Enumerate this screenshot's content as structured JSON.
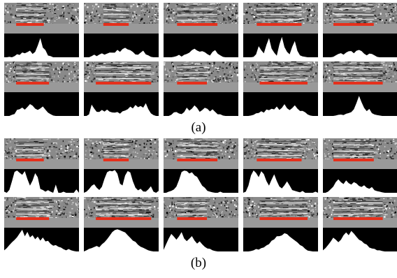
{
  "figure": {
    "panels": [
      {
        "label": "(a)",
        "rows": [
          {
            "cells": [
              {
                "segment": [
                  0.16,
                  0.53
                ],
                "activation": [
                  0,
                  0,
                  0.02,
                  0,
                  0.05,
                  0.12,
                  0.1,
                  0.2,
                  0.18,
                  0.25,
                  0.3,
                  0.18,
                  0.22,
                  0.5,
                  0.85,
                  0.45,
                  0.3,
                  0.1,
                  0.05,
                  0,
                  0,
                  0,
                  0,
                  0,
                  0,
                  0,
                  0,
                  0,
                  0,
                  0
                ]
              },
              {
                "segment": [
                  0.26,
                  0.6
                ],
                "activation": [
                  0,
                  0,
                  0,
                  0.05,
                  0.12,
                  0.08,
                  0.1,
                  0.15,
                  0.12,
                  0.16,
                  0.2,
                  0.18,
                  0.22,
                  0.3,
                  0.25,
                  0.35,
                  0.45,
                  0.38,
                  0.3,
                  0.22,
                  0.15,
                  0.12,
                  0.2,
                  0.3,
                  0.15,
                  0.06,
                  0.02,
                  0,
                  0,
                  0
                ]
              },
              {
                "segment": [
                  0.18,
                  0.72
                ],
                "activation": [
                  0,
                  0,
                  0,
                  0,
                  0.02,
                  0.05,
                  0.08,
                  0.06,
                  0.1,
                  0.12,
                  0.2,
                  0.32,
                  0.4,
                  0.3,
                  0.22,
                  0.25,
                  0.2,
                  0.15,
                  0.1,
                  0.22,
                  0.3,
                  0.18,
                  0.08,
                  0.02,
                  0,
                  0,
                  0,
                  0,
                  0,
                  0
                ]
              },
              {
                "segment": [
                  0.18,
                  0.78
                ],
                "activation": [
                  0,
                  0,
                  0,
                  0,
                  0.02,
                  0.1,
                  0.5,
                  0.3,
                  0.2,
                  0.55,
                  0.85,
                  0.4,
                  0.2,
                  0.1,
                  0.6,
                  0.9,
                  0.45,
                  0.25,
                  0.12,
                  0.45,
                  0.7,
                  0.3,
                  0.1,
                  0.04,
                  0.02,
                  0,
                  0,
                  0,
                  0,
                  0
                ]
              },
              {
                "segment": [
                  0.14,
                  0.68
                ],
                "activation": [
                  0,
                  0,
                  0,
                  0,
                  0.02,
                  0.06,
                  0.14,
                  0.2,
                  0.15,
                  0.22,
                  0.3,
                  0.25,
                  0.2,
                  0.28,
                  0.35,
                  0.25,
                  0.15,
                  0.1,
                  0.15,
                  0.12,
                  0.06,
                  0.02,
                  0,
                  0,
                  0,
                  0,
                  0,
                  0,
                  0,
                  0
                ]
              }
            ]
          },
          {
            "cells": [
              {
                "segment": [
                  0.16,
                  0.6
                ],
                "activation": [
                  0,
                  0,
                  0,
                  0.05,
                  0.12,
                  0.25,
                  0.3,
                  0.35,
                  0.28,
                  0.4,
                  0.55,
                  0.45,
                  0.3,
                  0.25,
                  0.35,
                  0.42,
                  0.3,
                  0.15,
                  0.06,
                  0.02,
                  0,
                  0,
                  0,
                  0,
                  0,
                  0,
                  0,
                  0,
                  0,
                  0
                ]
              },
              {
                "segment": [
                  0.16,
                  0.9
                ],
                "activation": [
                  0,
                  0,
                  0.1,
                  0.5,
                  0.3,
                  0.2,
                  0.15,
                  0.25,
                  0.2,
                  0.3,
                  0.22,
                  0.18,
                  0.12,
                  0.15,
                  0.1,
                  0.2,
                  0.25,
                  0.3,
                  0.42,
                  0.35,
                  0.5,
                  0.38,
                  0.45,
                  0.35,
                  0.55,
                  0.3,
                  0.12,
                  0.04,
                  0,
                  0
                ]
              },
              {
                "segment": [
                  0.18,
                  0.58
                ],
                "activation": [
                  0,
                  0,
                  0,
                  0.05,
                  0.15,
                  0.2,
                  0.12,
                  0.08,
                  0.2,
                  0.35,
                  0.25,
                  0.3,
                  0.48,
                  0.35,
                  0.2,
                  0.28,
                  0.4,
                  0.3,
                  0.22,
                  0.3,
                  0.18,
                  0.1,
                  0.06,
                  0.02,
                  0,
                  0,
                  0,
                  0,
                  0,
                  0
                ]
              },
              {
                "segment": [
                  0.22,
                  0.86
                ],
                "activation": [
                  0,
                  0,
                  0,
                  0.02,
                  0.05,
                  0.1,
                  0.15,
                  0.22,
                  0.18,
                  0.3,
                  0.25,
                  0.35,
                  0.28,
                  0.42,
                  0.3,
                  0.38,
                  0.5,
                  0.35,
                  0.25,
                  0.32,
                  0.45,
                  0.3,
                  0.2,
                  0.25,
                  0.15,
                  0.08,
                  0.02,
                  0,
                  0,
                  0
                ]
              },
              {
                "segment": [
                  0.14,
                  0.8
                ],
                "activation": [
                  0,
                  0,
                  0,
                  0,
                  0,
                  0.02,
                  0.05,
                  0.08,
                  0.06,
                  0.1,
                  0.15,
                  0.2,
                  0.3,
                  0.55,
                  0.9,
                  0.6,
                  0.35,
                  0.2,
                  0.3,
                  0.15,
                  0.08,
                  0.04,
                  0.02,
                  0,
                  0,
                  0,
                  0,
                  0,
                  0,
                  0
                ]
              }
            ]
          }
        ]
      },
      {
        "label": "(b)",
        "rows": [
          {
            "cells": [
              {
                "segment": [
                  0.16,
                  0.53
                ],
                "activation": [
                  0.05,
                  0,
                  0.1,
                  0.5,
                  0.95,
                  1,
                  0.9,
                  0.8,
                  0.95,
                  0.6,
                  0.3,
                  0.55,
                  0.9,
                  0.7,
                  0.2,
                  0.1,
                  0.05,
                  0.15,
                  0.05,
                  0,
                  0.4,
                  0,
                  0,
                  0.05,
                  0,
                  0,
                  0,
                  0,
                  0.15,
                  0
                ]
              },
              {
                "segment": [
                  0.26,
                  0.6
                ],
                "activation": [
                  0,
                  0.05,
                  0.15,
                  0.3,
                  0.4,
                  0.2,
                  0.1,
                  0.25,
                  0.6,
                  0.9,
                  1,
                  0.95,
                  1,
                  0.85,
                  0.4,
                  0.3,
                  0.8,
                  1,
                  0.9,
                  0.5,
                  0.2,
                  0.1,
                  0.15,
                  0.08,
                  0.05,
                  0.15,
                  0.3,
                  0.05,
                  0,
                  0.1
                ]
              },
              {
                "segment": [
                  0.18,
                  0.72
                ],
                "activation": [
                  0,
                  0,
                  0.05,
                  0.1,
                  0.15,
                  0.3,
                  0.6,
                  0.9,
                  1,
                  0.95,
                  0.85,
                  0.9,
                  0.8,
                  0.7,
                  0.5,
                  0.3,
                  0.2,
                  0.1,
                  0.05,
                  0.02,
                  0,
                  0,
                  0.05,
                  0,
                  0,
                  0,
                  0,
                  0,
                  0,
                  0
                ]
              },
              {
                "segment": [
                  0.18,
                  0.78
                ],
                "activation": [
                  0,
                  0.05,
                  0.3,
                  0.8,
                  1,
                  0.9,
                  0.7,
                  0.95,
                  0.85,
                  0.5,
                  0.3,
                  0.6,
                  0.8,
                  0.55,
                  0.3,
                  0.2,
                  0.35,
                  0.5,
                  0.3,
                  0.15,
                  0.1,
                  0.05,
                  0.02,
                  0.1,
                  0,
                  0,
                  0,
                  0,
                  0.05,
                  0
                ]
              },
              {
                "segment": [
                  0.14,
                  0.68
                ],
                "activation": [
                  0,
                  0,
                  0.05,
                  0.15,
                  0.3,
                  0.45,
                  0.6,
                  0.5,
                  0.4,
                  0.55,
                  0.45,
                  0.35,
                  0.5,
                  0.4,
                  0.3,
                  0.25,
                  0.35,
                  0.2,
                  0.15,
                  0.25,
                  0.12,
                  0.08,
                  0.05,
                  0.02,
                  0,
                  0,
                  0,
                  0,
                  0,
                  0
                ]
              }
            ]
          },
          {
            "cells": [
              {
                "segment": [
                  0.16,
                  0.6
                ],
                "activation": [
                  0.05,
                  0.15,
                  0.3,
                  0.4,
                  0.5,
                  0.65,
                  0.8,
                  0.95,
                  0.7,
                  0.85,
                  0.6,
                  0.75,
                  0.55,
                  0.65,
                  0.5,
                  0.6,
                  0.45,
                  0.5,
                  0.35,
                  0.25,
                  0.3,
                  0.2,
                  0.15,
                  0.1,
                  0.05,
                  0.1,
                  0.05,
                  0.02,
                  0,
                  0
                ]
              },
              {
                "segment": [
                  0.16,
                  0.9
                ],
                "activation": [
                  0,
                  0.05,
                  0.1,
                  0.15,
                  0.2,
                  0.25,
                  0.2,
                  0.3,
                  0.4,
                  0.55,
                  0.7,
                  0.85,
                  0.95,
                  1,
                  0.95,
                  0.9,
                  0.85,
                  0.75,
                  0.6,
                  0.5,
                  0.4,
                  0.3,
                  0.2,
                  0.15,
                  0.1,
                  0.05,
                  0.02,
                  0,
                  0,
                  0
                ]
              },
              {
                "segment": [
                  0.18,
                  0.58
                ],
                "activation": [
                  0.1,
                  0.3,
                  0.55,
                  0.8,
                  0.65,
                  0.5,
                  0.7,
                  0.85,
                  0.6,
                  0.45,
                  0.55,
                  0.7,
                  0.5,
                  0.35,
                  0.45,
                  0.3,
                  0.2,
                  0.15,
                  0.1,
                  0.05,
                  0.02,
                  0,
                  0,
                  0,
                  0,
                  0,
                  0,
                  0,
                  0,
                  0
                ]
              },
              {
                "segment": [
                  0.22,
                  0.86
                ],
                "activation": [
                  0,
                  0,
                  0,
                  0.02,
                  0.05,
                  0.08,
                  0.1,
                  0.15,
                  0.2,
                  0.25,
                  0.35,
                  0.45,
                  0.55,
                  0.65,
                  0.7,
                  0.75,
                  0.8,
                  0.75,
                  0.7,
                  0.6,
                  0.5,
                  0.4,
                  0.3,
                  0.2,
                  0.12,
                  0.06,
                  0.02,
                  0,
                  0,
                  0
                ]
              },
              {
                "segment": [
                  0.14,
                  0.8
                ],
                "activation": [
                  0.05,
                  0.15,
                  0.3,
                  0.45,
                  0.6,
                  0.5,
                  0.4,
                  0.55,
                  0.7,
                  0.85,
                  0.75,
                  0.9,
                  0.8,
                  0.65,
                  0.55,
                  0.45,
                  0.35,
                  0.3,
                  0.2,
                  0.15,
                  0.1,
                  0.08,
                  0.05,
                  0.02,
                  0,
                  0,
                  0,
                  0,
                  0,
                  0
                ]
              }
            ]
          }
        ]
      }
    ]
  }
}
